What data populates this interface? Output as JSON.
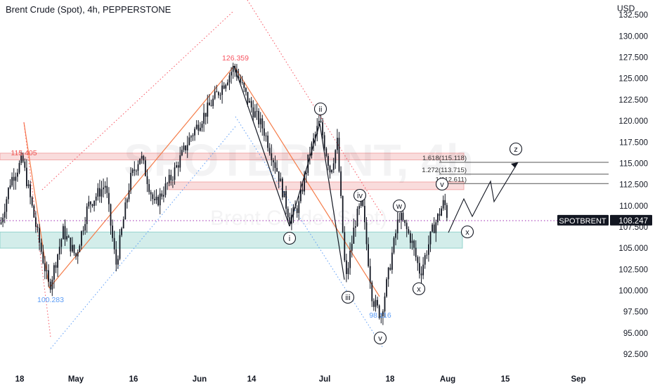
{
  "chart_data": {
    "type": "candlestick",
    "title": "Brent Crude (Spot), 4h, PEPPERSTONE",
    "currency": "USD",
    "watermark": {
      "main": "SPOTBRENT, 4h",
      "sub": "Brent Crude (Spot)"
    },
    "x_ticks": [
      "18",
      "May",
      "16",
      "Jun",
      "14",
      "Jul",
      "18",
      "Aug",
      "15",
      "Sep"
    ],
    "y_ticks": [
      "92.500",
      "95.000",
      "97.500",
      "100.000",
      "102.500",
      "105.000",
      "107.500",
      "110.000",
      "112.500",
      "115.000",
      "117.500",
      "120.000",
      "122.500",
      "125.000",
      "127.500",
      "130.000",
      "132.500"
    ],
    "ylim": [
      91.5,
      133.0
    ],
    "price_tag": {
      "symbol": "SPOTBRENT",
      "value": "108.247",
      "price": 108.247
    },
    "price_labels": [
      {
        "text": "115.405",
        "price": 115.405,
        "color": "#ef5350"
      },
      {
        "text": "126.359",
        "price": 126.359,
        "color": "#f7525f"
      },
      {
        "text": "100.283",
        "price": 100.283,
        "color": "#5b9cf6"
      },
      {
        "text": "98.116",
        "price": 98.116,
        "color": "#5b9cf6"
      }
    ],
    "fib_levels": [
      {
        "text": "1.618(115.118)",
        "price": 115.118
      },
      {
        "text": "1.272(113.715)",
        "price": 113.715
      },
      {
        "text": "1(112.611)",
        "price": 112.611
      }
    ],
    "zones": [
      {
        "name": "resistance",
        "from": 115.405,
        "to": 116.2,
        "color": "#ef9a9a"
      },
      {
        "name": "fib-zone",
        "from": 111.9,
        "to": 112.8,
        "color": "#ef9a9a"
      },
      {
        "name": "support",
        "from": 105.0,
        "to": 106.9,
        "color": "#80cbc4"
      }
    ],
    "wave_labels": [
      "ii",
      "i",
      "iv",
      "iii",
      "v",
      "w",
      "x",
      "v",
      "x",
      "z"
    ],
    "colors": {
      "candle": "#131722",
      "orange": "#f57c49",
      "red_dot": "#f7525f",
      "blue_dot": "#5b9cf6"
    }
  }
}
